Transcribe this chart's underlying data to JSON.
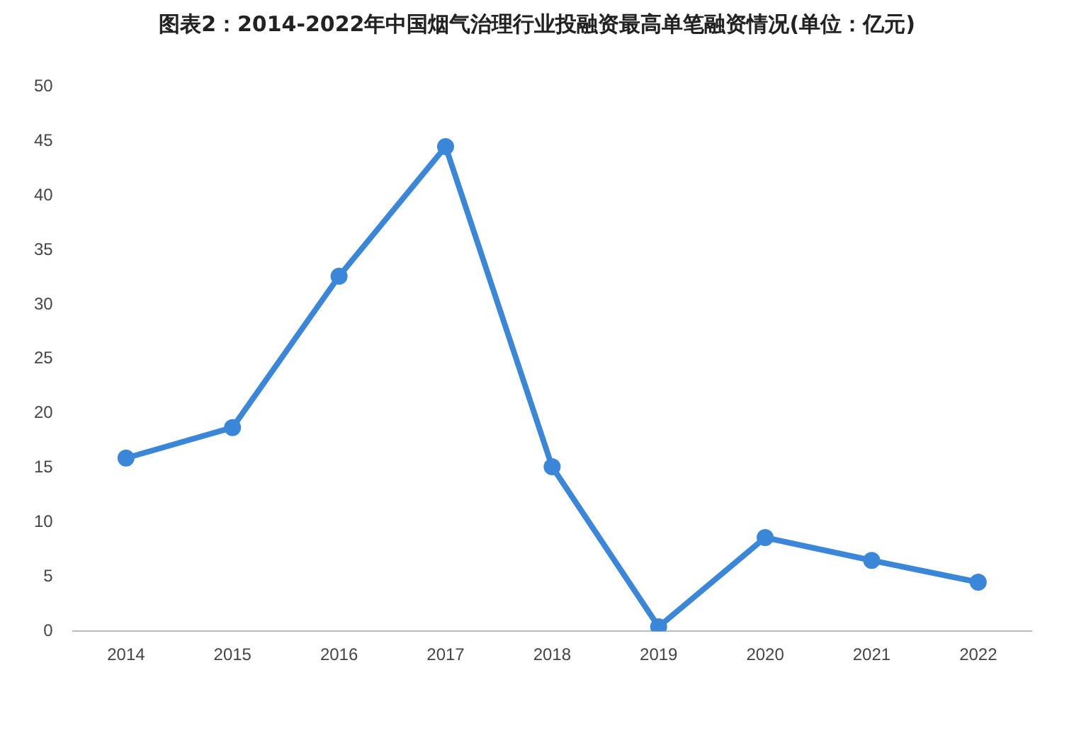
{
  "chart_data": {
    "type": "line",
    "title": "图表2：2014-2022年中国烟气治理行业投融资最高单笔融资情况(单位：亿元)",
    "categories": [
      "2014",
      "2015",
      "2016",
      "2017",
      "2018",
      "2019",
      "2020",
      "2021",
      "2022"
    ],
    "series": [
      {
        "color": "#3a86d8",
        "values": [
          15.9,
          18.7,
          32.6,
          44.5,
          15.1,
          0.4,
          8.6,
          6.5,
          4.5
        ]
      }
    ],
    "ylim": [
      0,
      50
    ],
    "yticks": [
      0,
      5,
      10,
      15,
      20,
      25,
      30,
      35,
      40,
      45,
      50
    ],
    "grid": false,
    "marker": "circle",
    "line_style": "solid"
  }
}
